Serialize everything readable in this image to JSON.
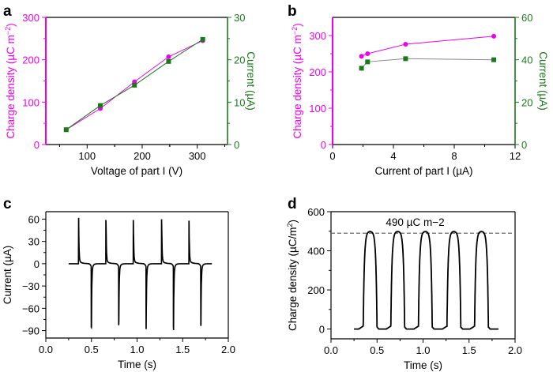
{
  "colors": {
    "magenta": "#ee00ee",
    "green": "#1a7a1a",
    "black": "#000000",
    "gray": "#888888"
  },
  "chart_data": [
    {
      "panel": "a",
      "type": "line",
      "xlabel": "Voltage of part I (V)",
      "ylabel": "Charge density (µC m−2)",
      "y2label": "Current (µA)",
      "xlim": [
        25,
        355
      ],
      "ylim": [
        0,
        300
      ],
      "y2lim": [
        0,
        30
      ],
      "xticks": [
        100,
        200,
        300
      ],
      "yticks": [
        0,
        100,
        200,
        300
      ],
      "y2ticks": [
        0,
        10,
        20,
        30
      ],
      "x": [
        62,
        124,
        186,
        248,
        310
      ],
      "series": [
        {
          "name": "Charge density",
          "axis": "left",
          "marker": "circle",
          "color": "#ee00ee",
          "values": [
            35,
            85,
            148,
            207,
            245
          ]
        },
        {
          "name": "Current",
          "axis": "right",
          "marker": "square",
          "color": "#1a7a1a",
          "values": [
            3.5,
            9.2,
            14,
            19.6,
            24.8
          ]
        }
      ]
    },
    {
      "panel": "b",
      "type": "line",
      "xlabel": "Current of part I (µA)",
      "ylabel": "Charge density (µC m−2)",
      "y2label": "Current (µA)",
      "xlim": [
        0,
        12
      ],
      "ylim": [
        0,
        350
      ],
      "y2lim": [
        0,
        60
      ],
      "xticks": [
        0,
        4,
        8,
        12
      ],
      "yticks": [
        0,
        100,
        200,
        300
      ],
      "y2ticks": [
        0,
        20,
        40,
        60
      ],
      "x": [
        1.9,
        2.3,
        4.8,
        10.6
      ],
      "series": [
        {
          "name": "Charge density",
          "axis": "left",
          "marker": "circle",
          "color": "#ee00ee",
          "values": [
            243,
            250,
            276,
            298
          ]
        },
        {
          "name": "Current",
          "axis": "right",
          "marker": "square",
          "color": "#1a7a1a",
          "values": [
            36,
            39,
            40.5,
            40
          ]
        }
      ]
    },
    {
      "panel": "c",
      "type": "line",
      "xlabel": "Time (s)",
      "ylabel": "Current (µA)",
      "xlim": [
        0,
        2
      ],
      "ylim": [
        -100,
        70
      ],
      "xticks": [
        "0.0",
        "0.5",
        "1.0",
        "1.5",
        "2.0"
      ],
      "yticks": [
        "60",
        "30",
        "0",
        "−30",
        "−60",
        "−90"
      ],
      "ytick_values": [
        60,
        30,
        0,
        -30,
        -60,
        -90
      ],
      "t_range": [
        0.25,
        1.82
      ],
      "positive_peaks": {
        "t": [
          0.36,
          0.66,
          0.96,
          1.27,
          1.57
        ],
        "values": [
          61,
          58,
          58,
          59,
          57
        ]
      },
      "negative_peaks": {
        "t": [
          0.5,
          0.8,
          1.1,
          1.4,
          1.7
        ],
        "values": [
          -81,
          -78,
          -83,
          -82,
          -79
        ]
      }
    },
    {
      "panel": "d",
      "type": "line",
      "xlabel": "Time (s)",
      "ylabel": "Charge density (µC/m2)",
      "xlim": [
        0,
        2
      ],
      "ylim": [
        -50,
        600
      ],
      "xticks": [
        "0.0",
        "0.5",
        "1.0",
        "1.5",
        "2.0"
      ],
      "yticks": [
        "0",
        "200",
        "400",
        "600"
      ],
      "ytick_values": [
        0,
        200,
        400,
        600
      ],
      "t_range": [
        0.25,
        1.82
      ],
      "pulses": {
        "rise_t": [
          0.35,
          0.65,
          0.95,
          1.26,
          1.56
        ],
        "fall_t": [
          0.5,
          0.8,
          1.1,
          1.41,
          1.71
        ],
        "peak": 490
      },
      "reference_line": 490,
      "annotation": "490 µC m−2"
    }
  ],
  "panel_labels": [
    "a",
    "b",
    "c",
    "d"
  ]
}
